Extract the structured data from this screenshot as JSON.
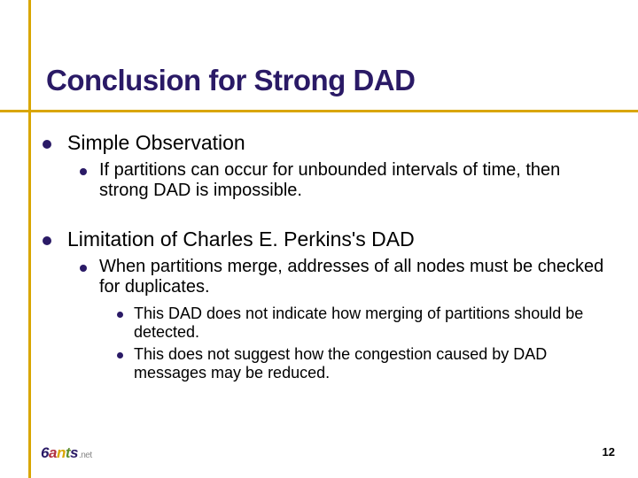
{
  "title": {
    "text": "Conclusion for Strong DAD",
    "color": "#2a1a66"
  },
  "accent_color": "#d9a600",
  "bullet_color": "#2a1a66",
  "text_color": "#000000",
  "items": {
    "p1": "Simple Observation",
    "p1_1": "If partitions can occur for unbounded intervals of time, then strong DAD is impossible.",
    "p2": "Limitation of Charles E. Perkins's DAD",
    "p2_1": "When partitions merge, addresses of all nodes must be checked for duplicates.",
    "p2_1_1": "This DAD does not indicate how merging of partitions should be detected.",
    "p2_1_2": "This does not suggest how the congestion caused by DAD messages may be reduced."
  },
  "logo": {
    "six": "6",
    "a": "a",
    "n": "n",
    "t": "t",
    "s": "s",
    "suffix": ".net"
  },
  "page_number": "12"
}
